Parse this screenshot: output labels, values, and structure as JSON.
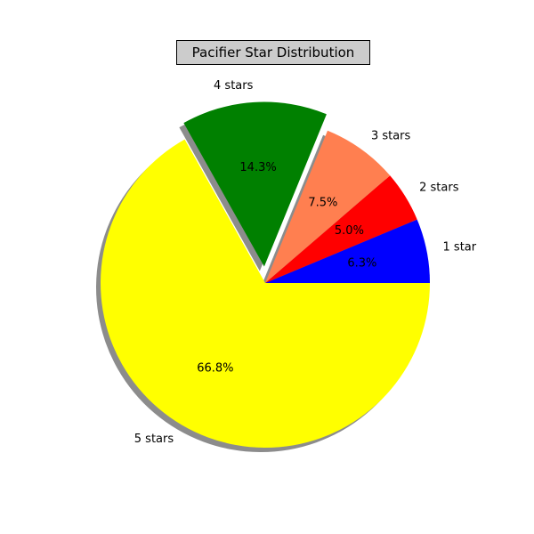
{
  "chart_data": {
    "type": "pie",
    "title": "Pacifier Star Distribution",
    "categories": [
      "1 star",
      "2 stars",
      "3 stars",
      "4 stars",
      "5 stars"
    ],
    "values": [
      6.3,
      5.0,
      7.5,
      14.3,
      66.8
    ],
    "value_labels": [
      "6.3%",
      "5.0%",
      "7.5%",
      "14.3%",
      "66.8%"
    ],
    "colors": [
      "#0000ff",
      "#ff0000",
      "#ff7f50",
      "#008000",
      "#ffff00"
    ],
    "explode": [
      0,
      0,
      0,
      0.1,
      0
    ],
    "shadow": true,
    "start_angle_deg": 0,
    "direction": "counterclockwise"
  }
}
